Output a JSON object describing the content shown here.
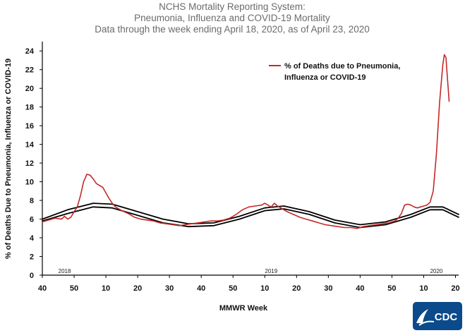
{
  "chart_data": {
    "type": "line",
    "title": [
      "NCHS Mortality Reporting System:",
      "Pneumonia,  Influenza and COVID-19 Mortality",
      "Data through the week ending April 18, 2020, as of April 23, 2020"
    ],
    "xlabel": "MMWR Week",
    "ylabel": "% of Deaths Due to Pneumonia, Influenza or  COVID-19",
    "x_tick_labels": [
      "40",
      "50",
      "10",
      "20",
      "30",
      "40",
      "50",
      "10",
      "20",
      "30",
      "40",
      "50",
      "10",
      "20"
    ],
    "x_tick_weeks": [
      0,
      10,
      20,
      30,
      40,
      50,
      60,
      70,
      80,
      90,
      100,
      110,
      120,
      130
    ],
    "year_labels": [
      {
        "label": "2018",
        "week": 7
      },
      {
        "label": "2019",
        "week": 72
      },
      {
        "label": "2020",
        "week": 124
      }
    ],
    "xlim": [
      0,
      131
    ],
    "ylim": [
      0,
      25
    ],
    "y_ticks": [
      0,
      2,
      4,
      6,
      8,
      10,
      12,
      14,
      16,
      18,
      20,
      22,
      24
    ],
    "grid": false,
    "legend_position": "top-right",
    "series": [
      {
        "name": "% of Deaths due to Pneumonia, Influenza or COVID-19",
        "color": "#c62828",
        "points": [
          [
            0,
            5.7
          ],
          [
            2,
            5.9
          ],
          [
            4,
            6.1
          ],
          [
            6,
            6.0
          ],
          [
            7,
            6.3
          ],
          [
            8,
            6.0
          ],
          [
            9,
            6.2
          ],
          [
            10,
            6.8
          ],
          [
            11,
            7.3
          ],
          [
            12,
            8.5
          ],
          [
            13,
            10.0
          ],
          [
            14,
            10.8
          ],
          [
            15,
            10.7
          ],
          [
            16,
            10.3
          ],
          [
            17,
            9.8
          ],
          [
            18,
            9.6
          ],
          [
            19,
            9.4
          ],
          [
            20,
            8.8
          ],
          [
            21,
            8.2
          ],
          [
            22,
            7.7
          ],
          [
            23,
            7.3
          ],
          [
            25,
            6.9
          ],
          [
            27,
            6.6
          ],
          [
            29,
            6.2
          ],
          [
            31,
            6.0
          ],
          [
            33,
            5.9
          ],
          [
            35,
            5.8
          ],
          [
            37,
            5.6
          ],
          [
            39,
            5.5
          ],
          [
            41,
            5.4
          ],
          [
            43,
            5.3
          ],
          [
            45,
            5.4
          ],
          [
            47,
            5.5
          ],
          [
            49,
            5.6
          ],
          [
            51,
            5.7
          ],
          [
            53,
            5.8
          ],
          [
            55,
            5.8
          ],
          [
            57,
            5.9
          ],
          [
            59,
            6.1
          ],
          [
            61,
            6.5
          ],
          [
            63,
            7.0
          ],
          [
            65,
            7.3
          ],
          [
            67,
            7.4
          ],
          [
            69,
            7.5
          ],
          [
            70,
            7.7
          ],
          [
            71,
            7.5
          ],
          [
            72,
            7.3
          ],
          [
            73,
            7.7
          ],
          [
            74,
            7.4
          ],
          [
            75,
            7.2
          ],
          [
            77,
            6.8
          ],
          [
            79,
            6.5
          ],
          [
            81,
            6.2
          ],
          [
            83,
            6.0
          ],
          [
            85,
            5.8
          ],
          [
            87,
            5.6
          ],
          [
            89,
            5.4
          ],
          [
            91,
            5.3
          ],
          [
            93,
            5.2
          ],
          [
            95,
            5.1
          ],
          [
            97,
            5.1
          ],
          [
            99,
            5.0
          ],
          [
            101,
            5.2
          ],
          [
            103,
            5.3
          ],
          [
            105,
            5.4
          ],
          [
            107,
            5.5
          ],
          [
            109,
            5.6
          ],
          [
            111,
            5.8
          ],
          [
            112,
            6.1
          ],
          [
            113,
            6.6
          ],
          [
            114,
            7.5
          ],
          [
            115,
            7.6
          ],
          [
            116,
            7.5
          ],
          [
            117,
            7.3
          ],
          [
            118,
            7.2
          ],
          [
            119,
            7.3
          ],
          [
            120,
            7.4
          ],
          [
            121,
            7.5
          ],
          [
            122,
            7.8
          ],
          [
            123,
            9.0
          ],
          [
            124,
            13.0
          ],
          [
            125,
            18.5
          ],
          [
            126,
            22.5
          ],
          [
            126.5,
            23.6
          ],
          [
            127,
            23.3
          ],
          [
            127.5,
            21.0
          ],
          [
            128,
            18.6
          ]
        ]
      },
      {
        "name": "",
        "color": "#000000",
        "points": [
          [
            0,
            6.0
          ],
          [
            8,
            7.0
          ],
          [
            16,
            7.7
          ],
          [
            22,
            7.6
          ],
          [
            30,
            6.8
          ],
          [
            38,
            6.0
          ],
          [
            46,
            5.5
          ],
          [
            54,
            5.6
          ],
          [
            62,
            6.3
          ],
          [
            70,
            7.2
          ],
          [
            76,
            7.4
          ],
          [
            84,
            6.8
          ],
          [
            92,
            5.9
          ],
          [
            100,
            5.4
          ],
          [
            108,
            5.7
          ],
          [
            116,
            6.5
          ],
          [
            122,
            7.3
          ],
          [
            126,
            7.3
          ],
          [
            131,
            6.5
          ]
        ]
      },
      {
        "name": "",
        "color": "#000000",
        "points": [
          [
            0,
            5.8
          ],
          [
            8,
            6.6
          ],
          [
            16,
            7.3
          ],
          [
            22,
            7.2
          ],
          [
            30,
            6.4
          ],
          [
            38,
            5.6
          ],
          [
            46,
            5.2
          ],
          [
            54,
            5.3
          ],
          [
            62,
            6.0
          ],
          [
            70,
            6.9
          ],
          [
            76,
            7.1
          ],
          [
            84,
            6.5
          ],
          [
            92,
            5.6
          ],
          [
            100,
            5.1
          ],
          [
            108,
            5.4
          ],
          [
            116,
            6.2
          ],
          [
            122,
            7.0
          ],
          [
            126,
            7.0
          ],
          [
            131,
            6.2
          ]
        ]
      }
    ]
  },
  "logo": {
    "text": "CDC"
  }
}
